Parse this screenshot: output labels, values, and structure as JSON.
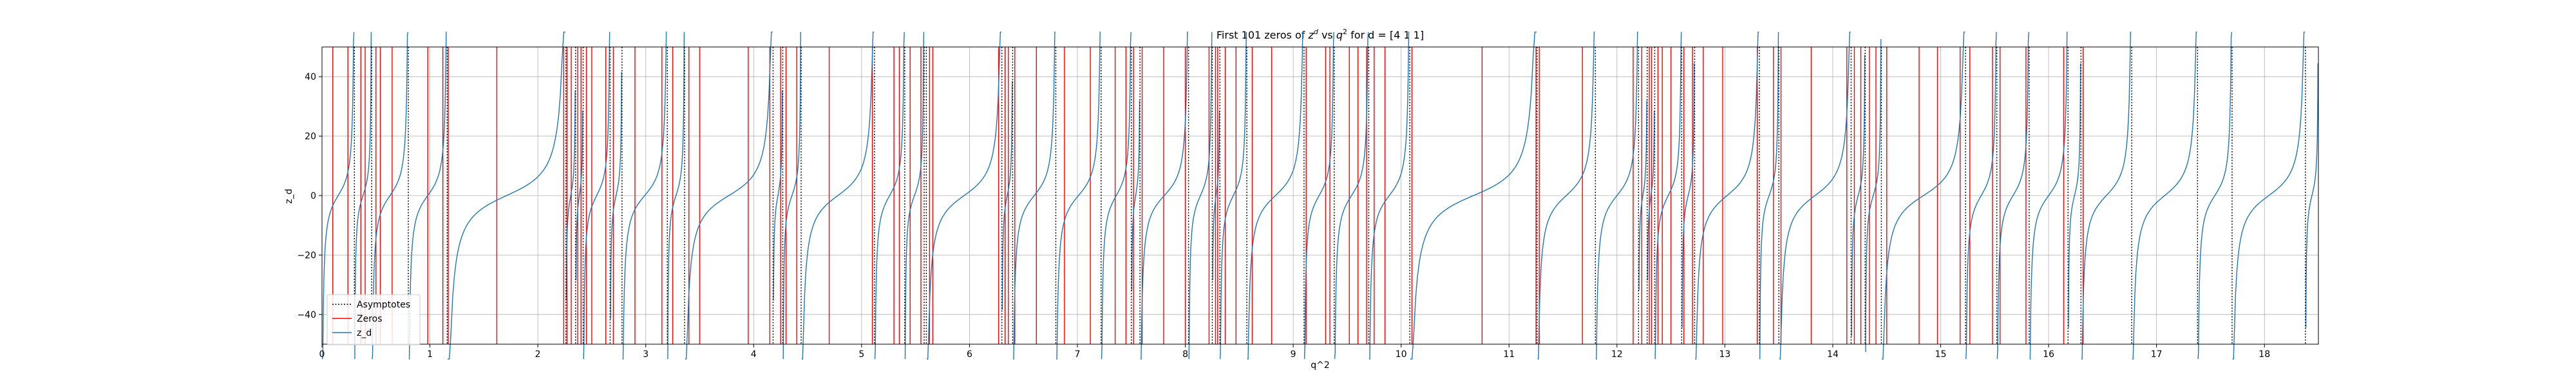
{
  "chart_data": {
    "type": "line",
    "title": "First 101 zeros of z^d vs q^2 for d = [4 1 1]",
    "title_parts": {
      "pre": "First 101 zeros of ",
      "z": "z",
      "z_sup": "d",
      "mid": " vs ",
      "q": "q",
      "q_sup": "2",
      "post": " for d = [4 1 1]"
    },
    "xlabel": "q^2",
    "ylabel": "z_d",
    "xlim": [
      0,
      18.5
    ],
    "ylim": [
      -50,
      50
    ],
    "x_ticks": [
      0,
      1,
      2,
      3,
      4,
      5,
      6,
      7,
      8,
      9,
      10,
      11,
      12,
      13,
      14,
      15,
      16,
      17,
      18
    ],
    "x_tick_labels": [
      "0",
      "1",
      "2",
      "3",
      "4",
      "5",
      "6",
      "7",
      "8",
      "9",
      "10",
      "11",
      "12",
      "13",
      "14",
      "15",
      "16",
      "17",
      "18"
    ],
    "y_ticks": [
      -40,
      -20,
      0,
      20,
      40
    ],
    "y_tick_labels": [
      "−40",
      "−20",
      "0",
      "20",
      "40"
    ],
    "grid": true,
    "legend_position": "lower-left",
    "series": [
      {
        "name": "Asymptotes",
        "style": "dotted",
        "color": "#000000",
        "values": [
          0.3,
          0.46,
          0.8,
          1.16,
          2.26,
          2.35,
          2.42,
          2.67,
          2.78,
          3.2,
          3.36,
          4.18,
          4.27,
          4.44,
          5.12,
          5.4,
          5.58,
          5.6,
          6.3,
          6.4,
          6.8,
          7.22,
          7.5,
          7.58,
          8.03,
          8.25,
          8.32,
          8.57,
          9.1,
          9.38,
          9.7,
          10.08,
          11.26,
          11.8,
          12.2,
          12.28,
          12.35,
          12.6,
          12.72,
          13.32,
          13.5,
          14.17,
          14.3,
          14.45,
          15.23,
          15.52,
          15.82,
          16.18,
          16.3,
          16.77,
          17.38,
          17.7,
          18.38
        ]
      },
      {
        "name": "Zeros",
        "style": "solid",
        "color": "#ff0000",
        "values": [
          0.1,
          0.24,
          0.36,
          0.4,
          0.5,
          0.54,
          0.65,
          0.98,
          1.12,
          1.17,
          1.62,
          2.24,
          2.27,
          2.31,
          2.37,
          2.4,
          2.45,
          2.5,
          2.63,
          2.7,
          2.9,
          3.15,
          3.25,
          3.4,
          3.5,
          3.95,
          4.15,
          4.25,
          4.3,
          4.4,
          4.7,
          5.1,
          5.3,
          5.35,
          5.45,
          5.55,
          5.63,
          5.66,
          6.27,
          6.33,
          6.36,
          6.42,
          6.62,
          6.88,
          7.12,
          7.35,
          7.45,
          7.52,
          7.6,
          7.8,
          8.0,
          8.22,
          8.28,
          8.3,
          8.37,
          8.47,
          8.62,
          8.8,
          9.12,
          9.3,
          9.34,
          9.52,
          9.6,
          9.68,
          9.75,
          9.85,
          10.1,
          10.75,
          11.25,
          11.28,
          11.68,
          12.15,
          12.23,
          12.3,
          12.32,
          12.38,
          12.42,
          12.5,
          12.62,
          12.7,
          12.8,
          12.98,
          13.3,
          13.45,
          13.52,
          13.8,
          14.13,
          14.2,
          14.26,
          14.34,
          14.4,
          14.5,
          14.8,
          14.97,
          15.18,
          15.27,
          15.48,
          15.55,
          15.79,
          16.14,
          16.32
        ]
      },
      {
        "name": "z_d",
        "style": "solid",
        "color": "#1f77b4",
        "description_of_shape": "tan-like branches rising between consecutive asymptotes, crossing zero at each zero",
        "values": []
      }
    ]
  },
  "legend": {
    "items": [
      {
        "label": "Asymptotes",
        "color": "#000000",
        "style": "dotted"
      },
      {
        "label": "Zeros",
        "color": "#ff0000",
        "style": "solid"
      },
      {
        "label": "z_d",
        "color": "#1f77b4",
        "style": "solid"
      }
    ]
  }
}
